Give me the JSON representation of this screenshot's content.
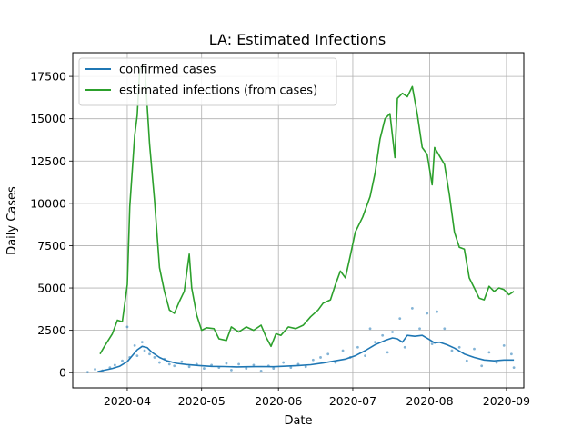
{
  "chart_data": {
    "type": "line",
    "title": "LA: Estimated Infections",
    "xlabel": "Date",
    "ylabel": "Daily Cases",
    "xlim": [
      "2020-03-10",
      "2020-09-08"
    ],
    "ylim": [
      -900,
      18900
    ],
    "grid": true,
    "legend_position": "top-left",
    "x_ticks": [
      {
        "value": "2020-04-01",
        "label": "2020-04"
      },
      {
        "value": "2020-05-01",
        "label": "2020-05"
      },
      {
        "value": "2020-06-01",
        "label": "2020-06"
      },
      {
        "value": "2020-07-01",
        "label": "2020-07"
      },
      {
        "value": "2020-08-01",
        "label": "2020-08"
      },
      {
        "value": "2020-09-01",
        "label": "2020-09"
      }
    ],
    "y_ticks": [
      0,
      2500,
      5000,
      7500,
      10000,
      12500,
      15000,
      17500
    ],
    "y_tick_labels": [
      "0",
      "2500",
      "5000",
      "7500",
      "10000",
      "12500",
      "15000",
      "17500"
    ],
    "series": [
      {
        "name": "confirmed cases",
        "color": "#1f77b4",
        "points": [
          [
            "2020-03-20",
            60
          ],
          [
            "2020-03-23",
            150
          ],
          [
            "2020-03-26",
            250
          ],
          [
            "2020-03-29",
            380
          ],
          [
            "2020-04-01",
            650
          ],
          [
            "2020-04-03",
            1000
          ],
          [
            "2020-04-05",
            1350
          ],
          [
            "2020-04-07",
            1550
          ],
          [
            "2020-04-09",
            1480
          ],
          [
            "2020-04-11",
            1200
          ],
          [
            "2020-04-14",
            900
          ],
          [
            "2020-04-17",
            700
          ],
          [
            "2020-04-21",
            550
          ],
          [
            "2020-04-25",
            480
          ],
          [
            "2020-04-30",
            420
          ],
          [
            "2020-05-05",
            370
          ],
          [
            "2020-05-10",
            360
          ],
          [
            "2020-05-15",
            340
          ],
          [
            "2020-05-20",
            350
          ],
          [
            "2020-05-25",
            360
          ],
          [
            "2020-05-30",
            350
          ],
          [
            "2020-06-04",
            380
          ],
          [
            "2020-06-09",
            420
          ],
          [
            "2020-06-14",
            470
          ],
          [
            "2020-06-19",
            570
          ],
          [
            "2020-06-24",
            700
          ],
          [
            "2020-06-28",
            800
          ],
          [
            "2020-07-02",
            1000
          ],
          [
            "2020-07-06",
            1300
          ],
          [
            "2020-07-10",
            1650
          ],
          [
            "2020-07-14",
            1900
          ],
          [
            "2020-07-17",
            2050
          ],
          [
            "2020-07-19",
            2000
          ],
          [
            "2020-07-21",
            1800
          ],
          [
            "2020-07-23",
            2200
          ],
          [
            "2020-07-26",
            2150
          ],
          [
            "2020-07-29",
            2200
          ],
          [
            "2020-08-01",
            1950
          ],
          [
            "2020-08-03",
            1750
          ],
          [
            "2020-08-05",
            1800
          ],
          [
            "2020-08-08",
            1650
          ],
          [
            "2020-08-11",
            1450
          ],
          [
            "2020-08-15",
            1100
          ],
          [
            "2020-08-19",
            900
          ],
          [
            "2020-08-23",
            750
          ],
          [
            "2020-08-27",
            700
          ],
          [
            "2020-08-31",
            750
          ],
          [
            "2020-09-04",
            750
          ]
        ]
      },
      {
        "name": "estimated infections (from cases)",
        "color": "#2ca02c",
        "points": [
          [
            "2020-03-21",
            1100
          ],
          [
            "2020-03-23",
            1600
          ],
          [
            "2020-03-26",
            2300
          ],
          [
            "2020-03-28",
            3100
          ],
          [
            "2020-03-30",
            3000
          ],
          [
            "2020-04-01",
            5200
          ],
          [
            "2020-04-02",
            9800
          ],
          [
            "2020-04-04",
            14000
          ],
          [
            "2020-04-05",
            15200
          ],
          [
            "2020-04-06",
            17900
          ],
          [
            "2020-04-08",
            18200
          ],
          [
            "2020-04-10",
            13500
          ],
          [
            "2020-04-12",
            10200
          ],
          [
            "2020-04-14",
            6200
          ],
          [
            "2020-04-16",
            4800
          ],
          [
            "2020-04-18",
            3700
          ],
          [
            "2020-04-20",
            3500
          ],
          [
            "2020-04-22",
            4200
          ],
          [
            "2020-04-24",
            4800
          ],
          [
            "2020-04-26",
            7000
          ],
          [
            "2020-04-27",
            5000
          ],
          [
            "2020-04-29",
            3400
          ],
          [
            "2020-05-01",
            2500
          ],
          [
            "2020-05-03",
            2650
          ],
          [
            "2020-05-06",
            2600
          ],
          [
            "2020-05-08",
            2000
          ],
          [
            "2020-05-11",
            1900
          ],
          [
            "2020-05-13",
            2700
          ],
          [
            "2020-05-16",
            2400
          ],
          [
            "2020-05-19",
            2700
          ],
          [
            "2020-05-22",
            2500
          ],
          [
            "2020-05-25",
            2800
          ],
          [
            "2020-05-27",
            2100
          ],
          [
            "2020-05-29",
            1550
          ],
          [
            "2020-05-31",
            2300
          ],
          [
            "2020-06-02",
            2200
          ],
          [
            "2020-06-05",
            2700
          ],
          [
            "2020-06-08",
            2600
          ],
          [
            "2020-06-11",
            2800
          ],
          [
            "2020-06-14",
            3300
          ],
          [
            "2020-06-17",
            3700
          ],
          [
            "2020-06-19",
            4100
          ],
          [
            "2020-06-22",
            4300
          ],
          [
            "2020-06-24",
            5200
          ],
          [
            "2020-06-26",
            6000
          ],
          [
            "2020-06-28",
            5600
          ],
          [
            "2020-06-30",
            6900
          ],
          [
            "2020-07-02",
            8300
          ],
          [
            "2020-07-05",
            9200
          ],
          [
            "2020-07-08",
            10400
          ],
          [
            "2020-07-10",
            11800
          ],
          [
            "2020-07-12",
            13800
          ],
          [
            "2020-07-14",
            15000
          ],
          [
            "2020-07-16",
            15300
          ],
          [
            "2020-07-18",
            12700
          ],
          [
            "2020-07-19",
            16200
          ],
          [
            "2020-07-21",
            16500
          ],
          [
            "2020-07-23",
            16300
          ],
          [
            "2020-07-25",
            16900
          ],
          [
            "2020-07-27",
            15300
          ],
          [
            "2020-07-29",
            13300
          ],
          [
            "2020-07-31",
            12900
          ],
          [
            "2020-08-02",
            11100
          ],
          [
            "2020-08-03",
            13300
          ],
          [
            "2020-08-05",
            12800
          ],
          [
            "2020-08-07",
            12300
          ],
          [
            "2020-08-09",
            10500
          ],
          [
            "2020-08-11",
            8300
          ],
          [
            "2020-08-13",
            7400
          ],
          [
            "2020-08-15",
            7300
          ],
          [
            "2020-08-17",
            5600
          ],
          [
            "2020-08-19",
            5000
          ],
          [
            "2020-08-21",
            4400
          ],
          [
            "2020-08-23",
            4300
          ],
          [
            "2020-08-25",
            5100
          ],
          [
            "2020-08-27",
            4800
          ],
          [
            "2020-08-29",
            5000
          ],
          [
            "2020-08-31",
            4900
          ],
          [
            "2020-09-02",
            4600
          ],
          [
            "2020-09-04",
            4800
          ]
        ]
      }
    ],
    "scatter": {
      "color": "#1f77b4",
      "points": [
        [
          "2020-03-16",
          30
        ],
        [
          "2020-03-19",
          200
        ],
        [
          "2020-03-22",
          120
        ],
        [
          "2020-03-25",
          300
        ],
        [
          "2020-03-27",
          450
        ],
        [
          "2020-03-30",
          700
        ],
        [
          "2020-04-01",
          2700
        ],
        [
          "2020-04-02",
          900
        ],
        [
          "2020-04-04",
          1600
        ],
        [
          "2020-04-05",
          1000
        ],
        [
          "2020-04-07",
          1800
        ],
        [
          "2020-04-08",
          1300
        ],
        [
          "2020-04-10",
          1100
        ],
        [
          "2020-04-12",
          900
        ],
        [
          "2020-04-14",
          600
        ],
        [
          "2020-04-16",
          800
        ],
        [
          "2020-04-18",
          500
        ],
        [
          "2020-04-20",
          400
        ],
        [
          "2020-04-23",
          650
        ],
        [
          "2020-04-26",
          350
        ],
        [
          "2020-04-29",
          500
        ],
        [
          "2020-05-02",
          250
        ],
        [
          "2020-05-05",
          450
        ],
        [
          "2020-05-08",
          300
        ],
        [
          "2020-05-11",
          550
        ],
        [
          "2020-05-13",
          150
        ],
        [
          "2020-05-16",
          500
        ],
        [
          "2020-05-19",
          250
        ],
        [
          "2020-05-22",
          450
        ],
        [
          "2020-05-25",
          100
        ],
        [
          "2020-05-28",
          400
        ],
        [
          "2020-05-30",
          250
        ],
        [
          "2020-06-03",
          600
        ],
        [
          "2020-06-06",
          300
        ],
        [
          "2020-06-09",
          500
        ],
        [
          "2020-06-12",
          350
        ],
        [
          "2020-06-15",
          750
        ],
        [
          "2020-06-18",
          900
        ],
        [
          "2020-06-21",
          1100
        ],
        [
          "2020-06-24",
          600
        ],
        [
          "2020-06-27",
          1300
        ],
        [
          "2020-06-30",
          900
        ],
        [
          "2020-07-03",
          1500
        ],
        [
          "2020-07-06",
          1000
        ],
        [
          "2020-07-08",
          2600
        ],
        [
          "2020-07-10",
          1800
        ],
        [
          "2020-07-13",
          2200
        ],
        [
          "2020-07-15",
          1200
        ],
        [
          "2020-07-17",
          2400
        ],
        [
          "2020-07-20",
          3200
        ],
        [
          "2020-07-22",
          1500
        ],
        [
          "2020-07-25",
          3800
        ],
        [
          "2020-07-28",
          2600
        ],
        [
          "2020-07-31",
          3500
        ],
        [
          "2020-08-02",
          1700
        ],
        [
          "2020-08-04",
          3600
        ],
        [
          "2020-08-07",
          2600
        ],
        [
          "2020-08-10",
          1300
        ],
        [
          "2020-08-13",
          1500
        ],
        [
          "2020-08-16",
          700
        ],
        [
          "2020-08-19",
          1400
        ],
        [
          "2020-08-22",
          400
        ],
        [
          "2020-08-25",
          1200
        ],
        [
          "2020-08-28",
          600
        ],
        [
          "2020-08-31",
          1600
        ],
        [
          "2020-09-03",
          1100
        ],
        [
          "2020-09-04",
          300
        ]
      ]
    }
  }
}
